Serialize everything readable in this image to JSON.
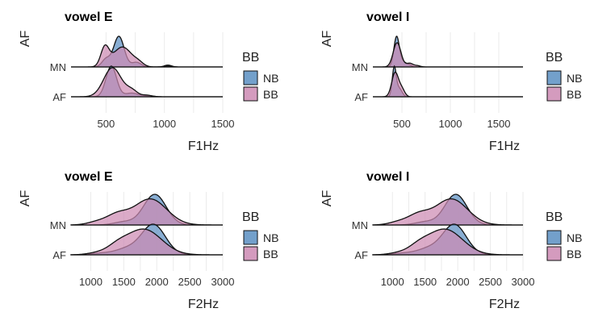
{
  "chart_data": [
    {
      "type": "area",
      "subtype": "ridgeline-density",
      "title": "vowel E",
      "xlabel": "F1Hz",
      "ylabel": "AF",
      "xlim": [
        200,
        1500
      ],
      "xticks": [
        500,
        1000,
        1500
      ],
      "categories": [
        "AF",
        "MN"
      ],
      "legend": {
        "title": "BB",
        "entries": [
          {
            "name": "NB",
            "color": "#5b8fc2"
          },
          {
            "name": "BB",
            "color": "#cd8ab3"
          }
        ],
        "position": "right"
      },
      "series": [
        {
          "name": "NB",
          "category": "AF",
          "peaks": [
            [
              545,
              45,
              1.0
            ],
            [
              720,
              60,
              0.12
            ],
            [
              870,
              40,
              0.03
            ]
          ]
        },
        {
          "name": "BB",
          "category": "AF",
          "peaks": [
            [
              555,
              75,
              0.95
            ],
            [
              720,
              50,
              0.2
            ],
            [
              850,
              40,
              0.05
            ]
          ]
        },
        {
          "name": "NB",
          "category": "MN",
          "peaks": [
            [
              610,
              45,
              1.0
            ],
            [
              500,
              35,
              0.25
            ],
            [
              760,
              40,
              0.15
            ],
            [
              1030,
              30,
              0.06
            ]
          ]
        },
        {
          "name": "BB",
          "category": "MN",
          "peaks": [
            [
              490,
              35,
              0.6
            ],
            [
              640,
              80,
              0.65
            ],
            [
              780,
              40,
              0.1
            ],
            [
              1030,
              30,
              0.03
            ]
          ]
        }
      ]
    },
    {
      "type": "area",
      "subtype": "ridgeline-density",
      "title": "vowel I",
      "xlabel": "F1Hz",
      "ylabel": "AF",
      "xlim": [
        200,
        1750
      ],
      "xticks": [
        500,
        1000,
        1500
      ],
      "categories": [
        "AF",
        "MN"
      ],
      "legend": {
        "title": "BB",
        "entries": [
          {
            "name": "NB",
            "color": "#5b8fc2"
          },
          {
            "name": "BB",
            "color": "#cd8ab3"
          }
        ],
        "position": "right"
      },
      "series": [
        {
          "name": "NB",
          "category": "AF",
          "peaks": [
            [
              420,
              20,
              1.0
            ],
            [
              470,
              30,
              0.3
            ]
          ]
        },
        {
          "name": "BB",
          "category": "AF",
          "peaks": [
            [
              430,
              35,
              0.85
            ],
            [
              500,
              30,
              0.25
            ]
          ]
        },
        {
          "name": "NB",
          "category": "MN",
          "peaks": [
            [
              445,
              28,
              1.0
            ],
            [
              510,
              30,
              0.15
            ],
            [
              570,
              30,
              0.07
            ]
          ]
        },
        {
          "name": "BB",
          "category": "MN",
          "peaks": [
            [
              450,
              40,
              0.8
            ],
            [
              580,
              35,
              0.12
            ],
            [
              660,
              30,
              0.04
            ]
          ]
        }
      ]
    },
    {
      "type": "area",
      "subtype": "ridgeline-density",
      "title": "vowel E",
      "xlabel": "F2Hz",
      "ylabel": "AF",
      "xlim": [
        700,
        3000
      ],
      "xticks": [
        1000,
        1500,
        2000,
        2500,
        3000
      ],
      "categories": [
        "AF",
        "MN"
      ],
      "legend": {
        "title": "BB",
        "entries": [
          {
            "name": "NB",
            "color": "#5b8fc2"
          },
          {
            "name": "BB",
            "color": "#cd8ab3"
          }
        ],
        "position": "right"
      },
      "series": [
        {
          "name": "NB",
          "category": "AF",
          "peaks": [
            [
              1950,
              180,
              1.0
            ],
            [
              1550,
              180,
              0.2
            ],
            [
              1150,
              150,
              0.05
            ]
          ]
        },
        {
          "name": "BB",
          "category": "AF",
          "peaks": [
            [
              1800,
              270,
              0.85
            ],
            [
              1400,
              150,
              0.2
            ],
            [
              1100,
              150,
              0.06
            ]
          ]
        },
        {
          "name": "NB",
          "category": "MN",
          "peaks": [
            [
              1970,
              170,
              1.0
            ],
            [
              1500,
              150,
              0.1
            ]
          ]
        },
        {
          "name": "BB",
          "category": "MN",
          "peaks": [
            [
              1900,
              250,
              0.85
            ],
            [
              1400,
              160,
              0.3
            ],
            [
              1100,
              150,
              0.1
            ]
          ]
        }
      ]
    },
    {
      "type": "area",
      "subtype": "ridgeline-density",
      "title": "vowel I",
      "xlabel": "F2Hz",
      "ylabel": "AF",
      "xlim": [
        700,
        3000
      ],
      "xticks": [
        1000,
        1500,
        2000,
        2500,
        3000
      ],
      "categories": [
        "AF",
        "MN"
      ],
      "legend": {
        "title": "BB",
        "entries": [
          {
            "name": "NB",
            "color": "#5b8fc2"
          },
          {
            "name": "BB",
            "color": "#cd8ab3"
          }
        ],
        "position": "right"
      },
      "series": [
        {
          "name": "NB",
          "category": "AF",
          "peaks": [
            [
              1950,
              180,
              1.0
            ],
            [
              1550,
              180,
              0.2
            ],
            [
              1150,
              150,
              0.05
            ]
          ]
        },
        {
          "name": "BB",
          "category": "AF",
          "peaks": [
            [
              1800,
              270,
              0.85
            ],
            [
              1400,
              150,
              0.2
            ],
            [
              1100,
              150,
              0.06
            ]
          ]
        },
        {
          "name": "NB",
          "category": "MN",
          "peaks": [
            [
              1970,
              170,
              1.0
            ],
            [
              1500,
              150,
              0.1
            ]
          ]
        },
        {
          "name": "BB",
          "category": "MN",
          "peaks": [
            [
              1900,
              250,
              0.85
            ],
            [
              1400,
              160,
              0.3
            ],
            [
              1100,
              150,
              0.1
            ]
          ]
        }
      ]
    }
  ]
}
